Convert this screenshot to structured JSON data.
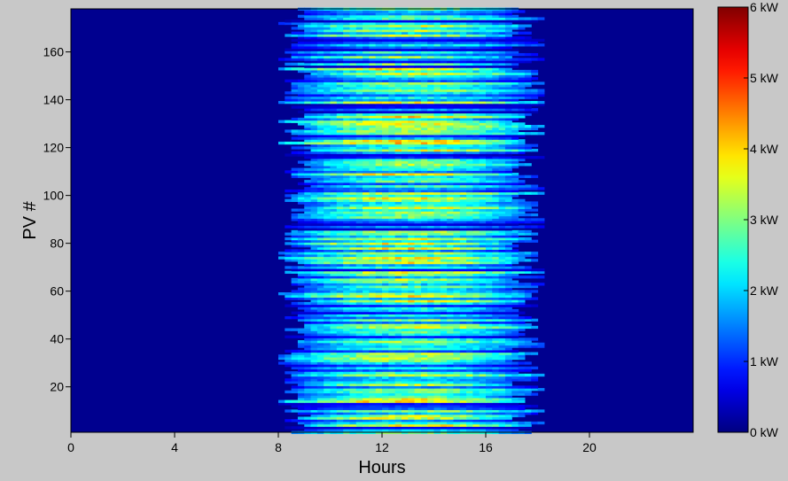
{
  "chart_data": {
    "type": "heatmap",
    "title": "",
    "xlabel": "Hours",
    "ylabel": "PV #",
    "xlim": [
      0,
      24
    ],
    "ylim": [
      1,
      178
    ],
    "x_ticks": [
      0,
      4,
      8,
      12,
      16,
      20
    ],
    "x_tick_labels": [
      "0",
      "4",
      "8",
      "12",
      "16",
      "20"
    ],
    "y_ticks": [
      20,
      40,
      60,
      80,
      100,
      120,
      140,
      160
    ],
    "y_tick_labels": [
      "20",
      "40",
      "60",
      "80",
      "100",
      "120",
      "140",
      "160"
    ],
    "colorbar": {
      "colormap": "jet",
      "range": [
        0,
        6
      ],
      "unit": "kW",
      "ticks": [
        0,
        1,
        2,
        3,
        4,
        5,
        6
      ],
      "tick_labels": [
        "0 kW",
        "1 kW",
        "2 kW",
        "3 kW",
        "4 kW",
        "5 kW",
        "6 kW"
      ]
    },
    "pv_count": 178,
    "daylight_start_hour": 8.5,
    "daylight_end_hour": 17.5,
    "peak_hour": 13,
    "typical_peak_kw": 3.6,
    "max_kw": 4.8,
    "background_kw": 0.1,
    "grid": false
  }
}
